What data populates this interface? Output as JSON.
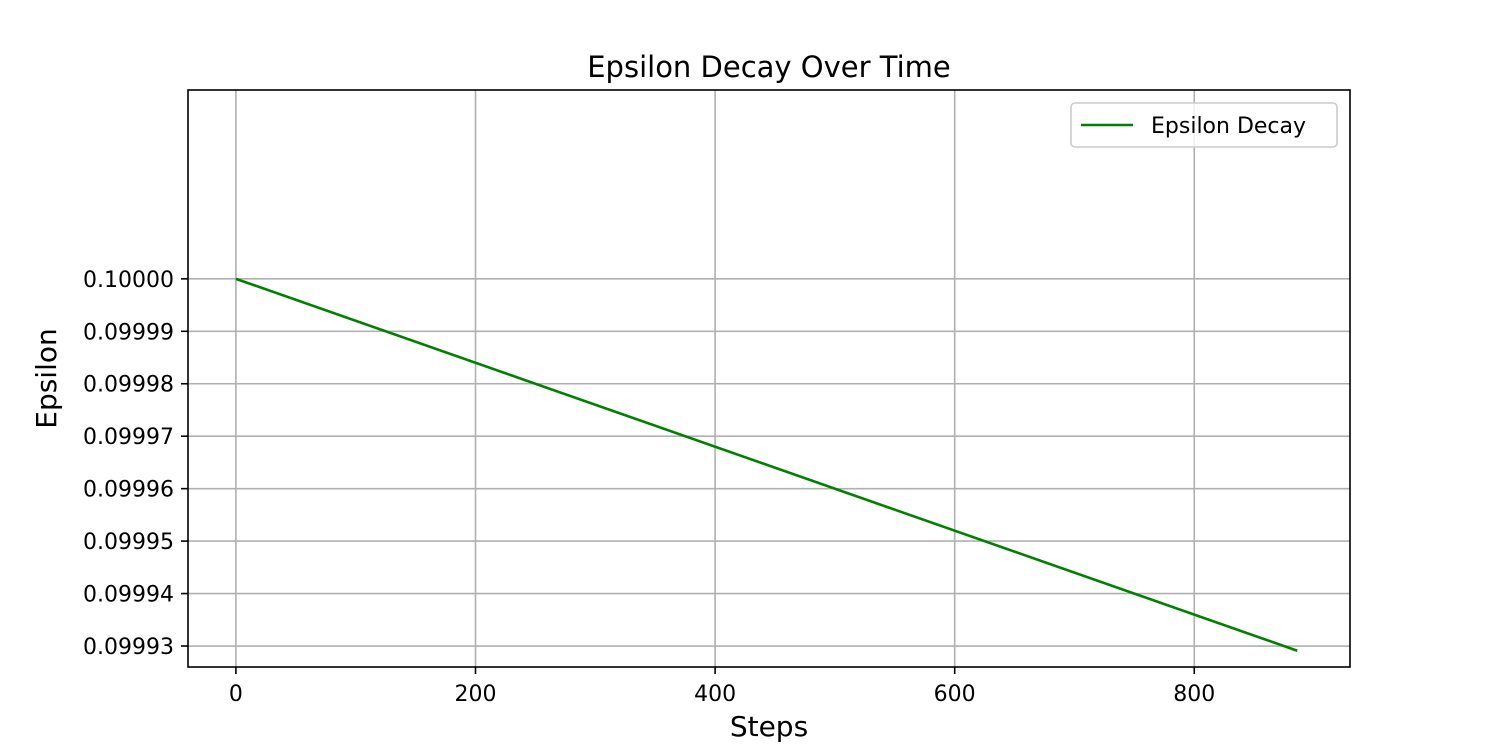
{
  "chart_data": {
    "type": "line",
    "title": "Epsilon Decay Over Time",
    "xlabel": "Steps",
    "ylabel": "Epsilon",
    "xlim": [
      -40,
      930
    ],
    "ylim": [
      0.099926,
      0.100036
    ],
    "x_ticks": [
      0,
      200,
      400,
      600,
      800
    ],
    "x_tick_labels": [
      "0",
      "200",
      "400",
      "600",
      "800"
    ],
    "y_ticks": [
      0.09993,
      0.09994,
      0.09995,
      0.09996,
      0.09997,
      0.09998,
      0.09999,
      0.1
    ],
    "y_tick_labels": [
      "0.09993",
      "0.09994",
      "0.09995",
      "0.09996",
      "0.09997",
      "0.09998",
      "0.09999",
      "0.10000"
    ],
    "grid": true,
    "legend_position": "upper right",
    "series": [
      {
        "name": "Epsilon Decay",
        "color": "#008000",
        "x": [
          0,
          886
        ],
        "y": [
          0.1,
          0.0999291
        ]
      }
    ]
  }
}
